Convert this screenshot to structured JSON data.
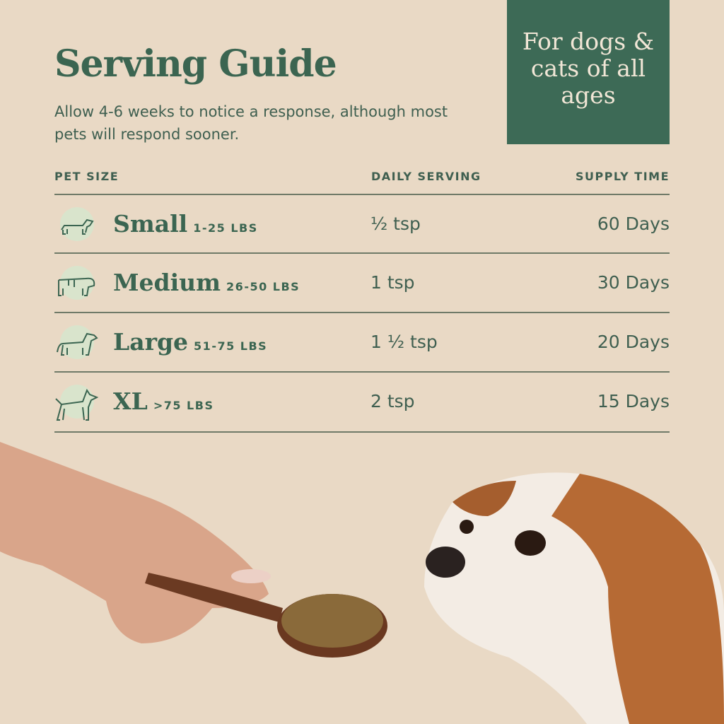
{
  "header": {
    "title": "Serving Guide",
    "subtitle": "Allow 4-6 weeks to notice a response, although most pets will respond sooner."
  },
  "badge": {
    "text": "For dogs & cats of all ages"
  },
  "table": {
    "columns": [
      "PET SIZE",
      "DAILY SERVING",
      "SUPPLY TIME"
    ],
    "rows": [
      {
        "size": "Small",
        "weight": "1-25 LBS",
        "serving": "½ tsp",
        "supply": "60 Days",
        "icon": "dachshund-icon"
      },
      {
        "size": "Medium",
        "weight": "26-50 LBS",
        "serving": "1 tsp",
        "supply": "30 Days",
        "icon": "bulldog-icon"
      },
      {
        "size": "Large",
        "weight": "51-75 LBS",
        "serving": "1 ½ tsp",
        "supply": "20 Days",
        "icon": "retriever-icon"
      },
      {
        "size": "XL",
        "weight": ">75 LBS",
        "serving": "2 tsp",
        "supply": "15 Days",
        "icon": "doberman-icon"
      }
    ]
  },
  "colors": {
    "background": "#e9d9c5",
    "brand_green": "#3d6a56",
    "icon_circle": "#d9e4cc"
  }
}
